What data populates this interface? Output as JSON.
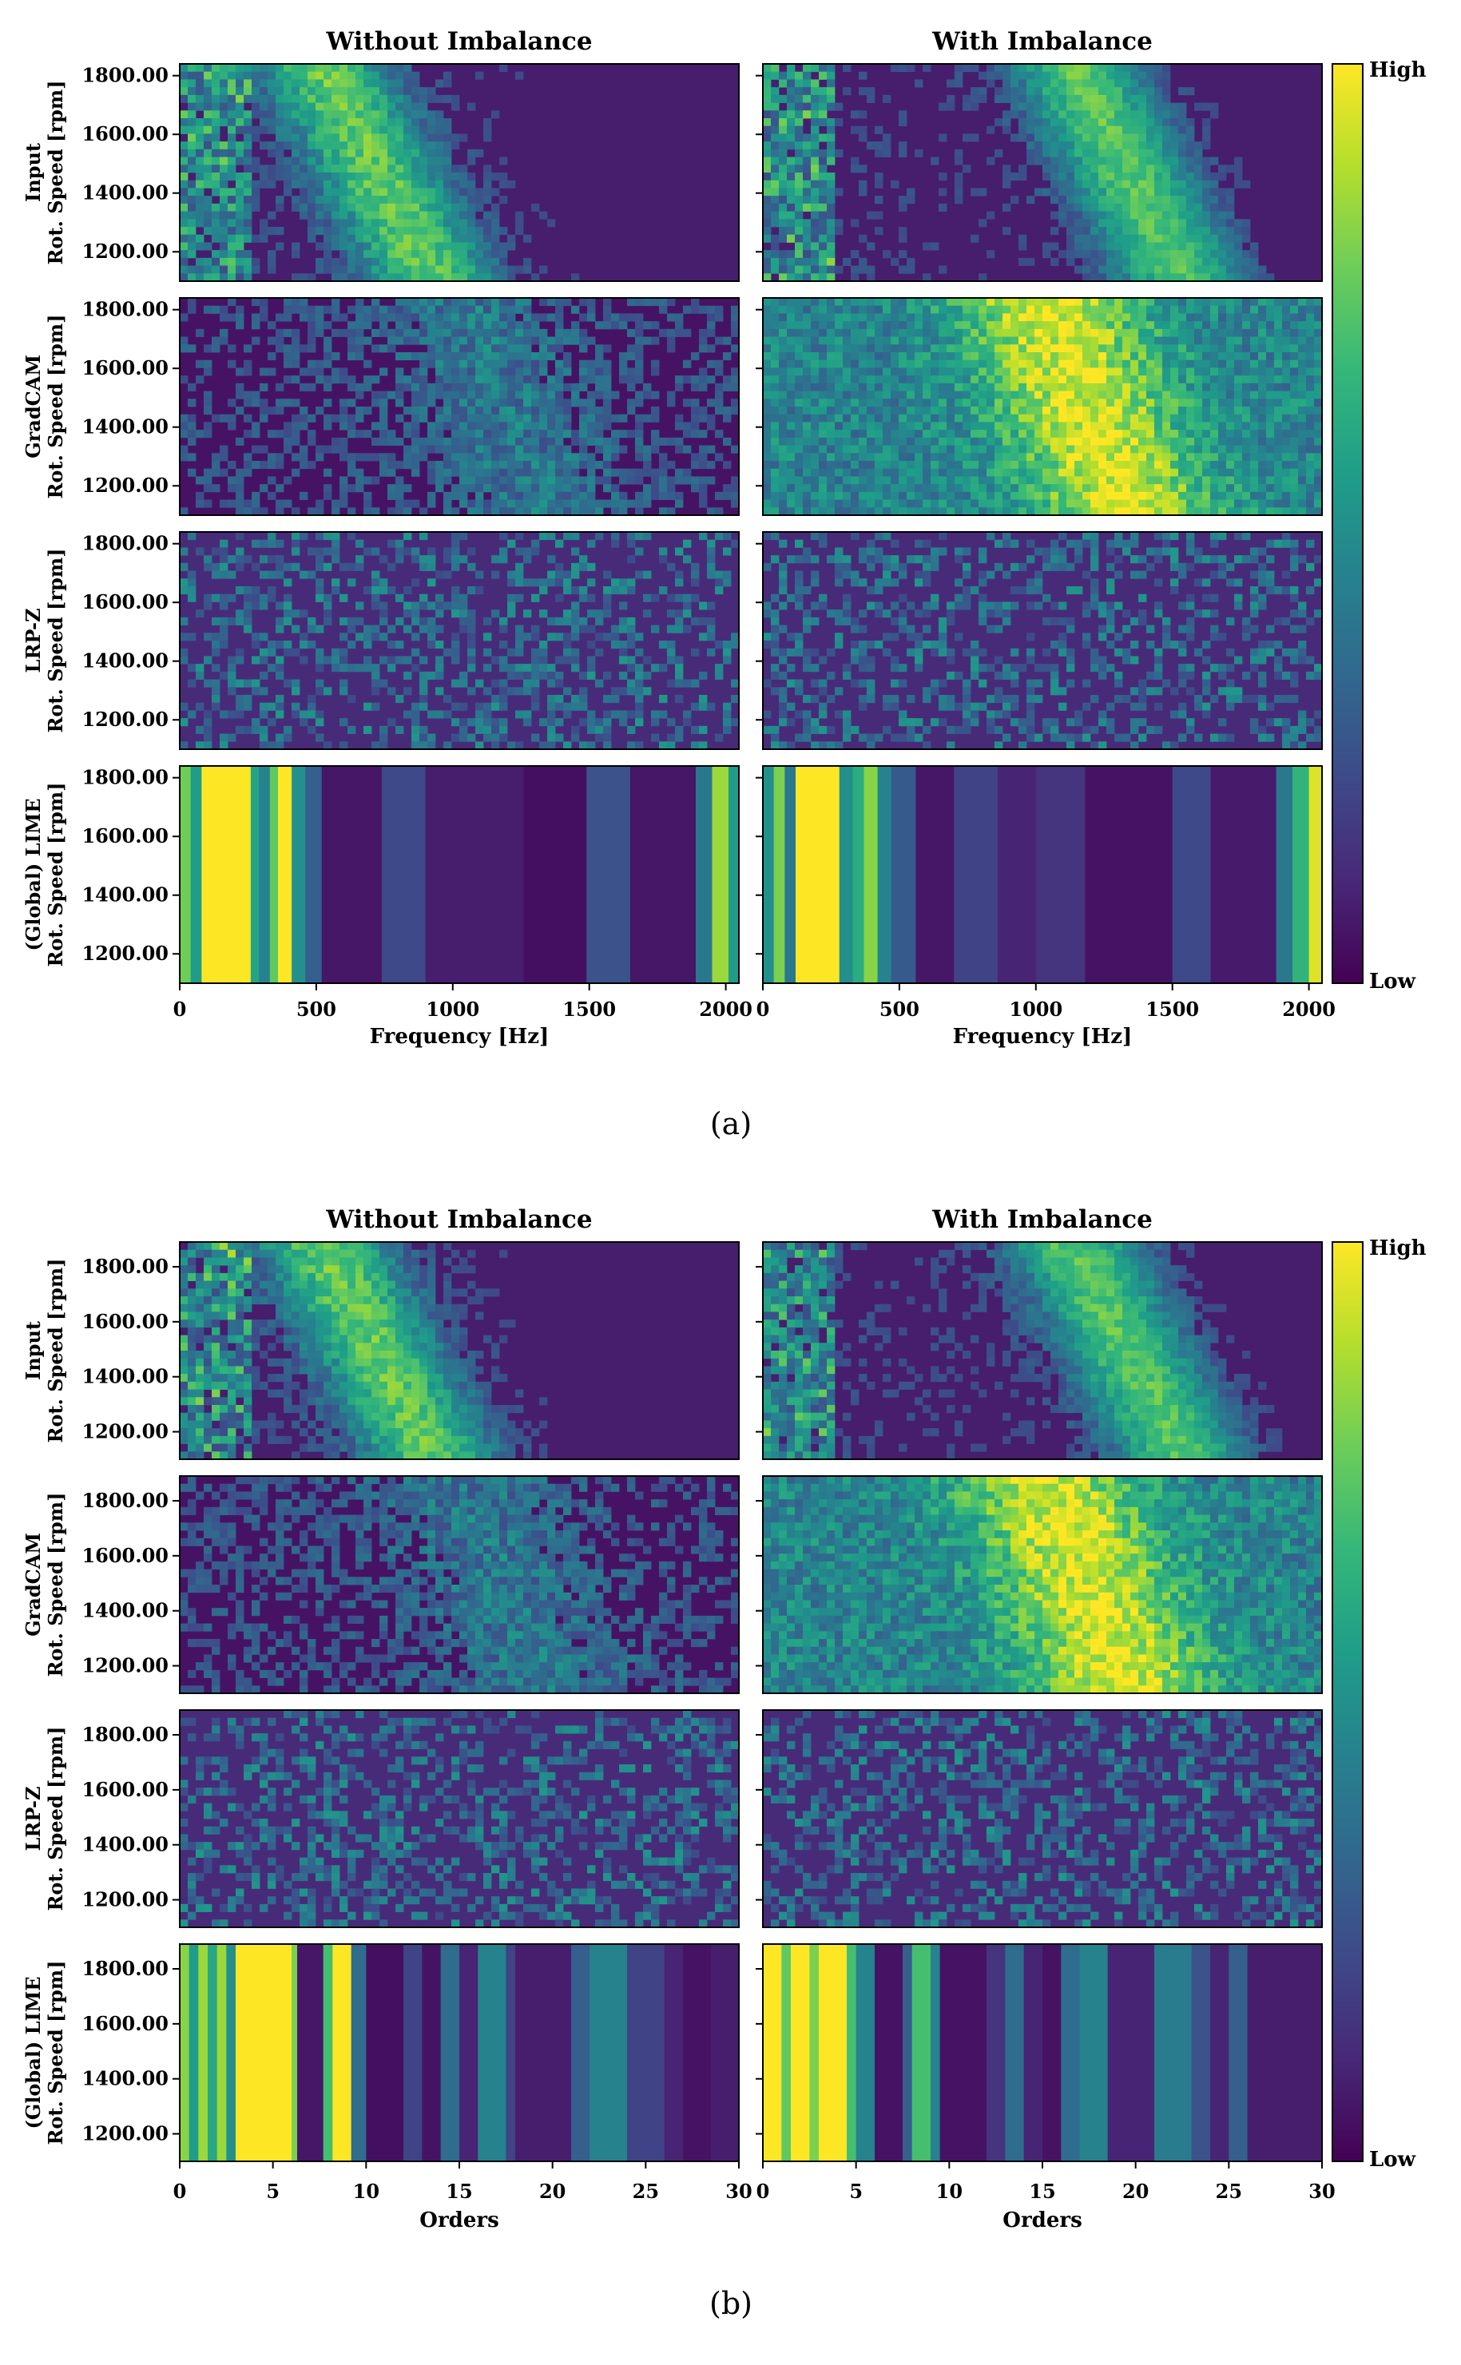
{
  "chart_data": [
    {
      "type": "heatmap",
      "panel_label": "(a)",
      "columns": [
        "Without Imbalance",
        "With Imbalance"
      ],
      "rows": [
        {
          "line1": "Input",
          "line2": "Rot. Speed [rpm]"
        },
        {
          "line1": "GradCAM",
          "line2": "Rot. Speed [rpm]"
        },
        {
          "line1": "LRP-Z",
          "line2": "Rot. Speed [rpm]"
        },
        {
          "line1": "(Global) LIME",
          "line2": "Rot. Speed [rpm]"
        }
      ],
      "xlabel": "Frequency [Hz]",
      "xlim": [
        0,
        2048
      ],
      "xticks": [
        0,
        500,
        1000,
        1500,
        2000
      ],
      "ylim": [
        1100,
        1840
      ],
      "yticks": [
        1200,
        1400,
        1600,
        1800
      ],
      "ytick_labels": [
        "1200.00",
        "1400.00",
        "1600.00",
        "1800.00"
      ],
      "colorbar": {
        "high": "High",
        "low": "Low",
        "colormap": "viridis"
      },
      "lime_bands": {
        "without": [
          {
            "x0": 0,
            "x1": 40,
            "v": 0.78
          },
          {
            "x0": 40,
            "x1": 80,
            "v": 0.55
          },
          {
            "x0": 80,
            "x1": 260,
            "v": 1.0
          },
          {
            "x0": 260,
            "x1": 290,
            "v": 0.58
          },
          {
            "x0": 290,
            "x1": 330,
            "v": 0.45
          },
          {
            "x0": 330,
            "x1": 360,
            "v": 0.75
          },
          {
            "x0": 360,
            "x1": 410,
            "v": 1.0
          },
          {
            "x0": 410,
            "x1": 460,
            "v": 0.5
          },
          {
            "x0": 460,
            "x1": 520,
            "v": 0.3
          },
          {
            "x0": 520,
            "x1": 740,
            "v": 0.06
          },
          {
            "x0": 740,
            "x1": 900,
            "v": 0.22
          },
          {
            "x0": 900,
            "x1": 1260,
            "v": 0.08
          },
          {
            "x0": 1260,
            "x1": 1490,
            "v": 0.04
          },
          {
            "x0": 1490,
            "x1": 1650,
            "v": 0.25
          },
          {
            "x0": 1650,
            "x1": 1890,
            "v": 0.06
          },
          {
            "x0": 1890,
            "x1": 1950,
            "v": 0.4
          },
          {
            "x0": 1950,
            "x1": 2010,
            "v": 0.85
          },
          {
            "x0": 2010,
            "x1": 2048,
            "v": 0.55
          }
        ],
        "with": [
          {
            "x0": 0,
            "x1": 40,
            "v": 0.5
          },
          {
            "x0": 40,
            "x1": 80,
            "v": 0.8
          },
          {
            "x0": 80,
            "x1": 120,
            "v": 0.4
          },
          {
            "x0": 120,
            "x1": 280,
            "v": 1.0
          },
          {
            "x0": 280,
            "x1": 330,
            "v": 0.5
          },
          {
            "x0": 330,
            "x1": 370,
            "v": 0.62
          },
          {
            "x0": 370,
            "x1": 420,
            "v": 0.82
          },
          {
            "x0": 420,
            "x1": 470,
            "v": 0.45
          },
          {
            "x0": 470,
            "x1": 560,
            "v": 0.28
          },
          {
            "x0": 560,
            "x1": 700,
            "v": 0.06
          },
          {
            "x0": 700,
            "x1": 860,
            "v": 0.2
          },
          {
            "x0": 860,
            "x1": 1000,
            "v": 0.1
          },
          {
            "x0": 1000,
            "x1": 1180,
            "v": 0.15
          },
          {
            "x0": 1180,
            "x1": 1500,
            "v": 0.05
          },
          {
            "x0": 1500,
            "x1": 1640,
            "v": 0.22
          },
          {
            "x0": 1640,
            "x1": 1880,
            "v": 0.07
          },
          {
            "x0": 1880,
            "x1": 1940,
            "v": 0.4
          },
          {
            "x0": 1940,
            "x1": 2000,
            "v": 0.65
          },
          {
            "x0": 2000,
            "x1": 2048,
            "v": 0.95
          }
        ]
      }
    },
    {
      "type": "heatmap",
      "panel_label": "(b)",
      "columns": [
        "Without Imbalance",
        "With Imbalance"
      ],
      "rows": [
        {
          "line1": "Input",
          "line2": "Rot. Speed [rpm]"
        },
        {
          "line1": "GradCAM",
          "line2": "Rot. Speed [rpm]"
        },
        {
          "line1": "LRP-Z",
          "line2": "Rot. Speed [rpm]"
        },
        {
          "line1": "(Global) LIME",
          "line2": "Rot. Speed [rpm]"
        }
      ],
      "xlabel": "Orders",
      "xlim": [
        0,
        30
      ],
      "xticks": [
        0,
        5,
        10,
        15,
        20,
        25,
        30
      ],
      "ylim": [
        1100,
        1890
      ],
      "yticks": [
        1200,
        1400,
        1600,
        1800
      ],
      "ytick_labels": [
        "1200.00",
        "1400.00",
        "1600.00",
        "1800.00"
      ],
      "colorbar": {
        "high": "High",
        "low": "Low",
        "colormap": "viridis"
      },
      "lime_bands": {
        "without": [
          {
            "x0": 0,
            "x1": 0.5,
            "v": 0.82
          },
          {
            "x0": 0.5,
            "x1": 1,
            "v": 0.55
          },
          {
            "x0": 1,
            "x1": 1.5,
            "v": 0.85
          },
          {
            "x0": 1.5,
            "x1": 2,
            "v": 0.6
          },
          {
            "x0": 2,
            "x1": 2.5,
            "v": 0.85
          },
          {
            "x0": 2.5,
            "x1": 3,
            "v": 0.5
          },
          {
            "x0": 3,
            "x1": 6,
            "v": 1.0
          },
          {
            "x0": 6,
            "x1": 6.3,
            "v": 0.8
          },
          {
            "x0": 6.3,
            "x1": 7.7,
            "v": 0.06
          },
          {
            "x0": 7.7,
            "x1": 8.2,
            "v": 0.7
          },
          {
            "x0": 8.2,
            "x1": 9.2,
            "v": 1.0
          },
          {
            "x0": 9.2,
            "x1": 10,
            "v": 0.35
          },
          {
            "x0": 10,
            "x1": 12,
            "v": 0.04
          },
          {
            "x0": 12,
            "x1": 13,
            "v": 0.2
          },
          {
            "x0": 13,
            "x1": 14,
            "v": 0.05
          },
          {
            "x0": 14,
            "x1": 15,
            "v": 0.35
          },
          {
            "x0": 15,
            "x1": 16,
            "v": 0.1
          },
          {
            "x0": 16,
            "x1": 17.5,
            "v": 0.45
          },
          {
            "x0": 17.5,
            "x1": 18,
            "v": 0.2
          },
          {
            "x0": 18,
            "x1": 21,
            "v": 0.08
          },
          {
            "x0": 21,
            "x1": 22,
            "v": 0.3
          },
          {
            "x0": 22,
            "x1": 24,
            "v": 0.45
          },
          {
            "x0": 24,
            "x1": 26,
            "v": 0.2
          },
          {
            "x0": 26,
            "x1": 27,
            "v": 0.1
          },
          {
            "x0": 27,
            "x1": 28.5,
            "v": 0.05
          },
          {
            "x0": 28.5,
            "x1": 30,
            "v": 0.08
          }
        ],
        "with": [
          {
            "x0": 0,
            "x1": 1,
            "v": 1.0
          },
          {
            "x0": 1,
            "x1": 1.5,
            "v": 0.75
          },
          {
            "x0": 1.5,
            "x1": 2.5,
            "v": 1.0
          },
          {
            "x0": 2.5,
            "x1": 3,
            "v": 0.8
          },
          {
            "x0": 3,
            "x1": 4.5,
            "v": 1.0
          },
          {
            "x0": 4.5,
            "x1": 5,
            "v": 0.7
          },
          {
            "x0": 5,
            "x1": 6,
            "v": 0.45
          },
          {
            "x0": 6,
            "x1": 7.5,
            "v": 0.05
          },
          {
            "x0": 7.5,
            "x1": 8,
            "v": 0.3
          },
          {
            "x0": 8,
            "x1": 9,
            "v": 0.7
          },
          {
            "x0": 9,
            "x1": 9.5,
            "v": 0.45
          },
          {
            "x0": 9.5,
            "x1": 12,
            "v": 0.05
          },
          {
            "x0": 12,
            "x1": 13,
            "v": 0.15
          },
          {
            "x0": 13,
            "x1": 14,
            "v": 0.35
          },
          {
            "x0": 14,
            "x1": 15,
            "v": 0.1
          },
          {
            "x0": 15,
            "x1": 16,
            "v": 0.05
          },
          {
            "x0": 16,
            "x1": 17,
            "v": 0.35
          },
          {
            "x0": 17,
            "x1": 18.5,
            "v": 0.45
          },
          {
            "x0": 18.5,
            "x1": 21,
            "v": 0.1
          },
          {
            "x0": 21,
            "x1": 23,
            "v": 0.42
          },
          {
            "x0": 23,
            "x1": 24,
            "v": 0.25
          },
          {
            "x0": 24,
            "x1": 25,
            "v": 0.1
          },
          {
            "x0": 25,
            "x1": 26,
            "v": 0.3
          },
          {
            "x0": 26,
            "x1": 30,
            "v": 0.08
          }
        ]
      }
    }
  ]
}
